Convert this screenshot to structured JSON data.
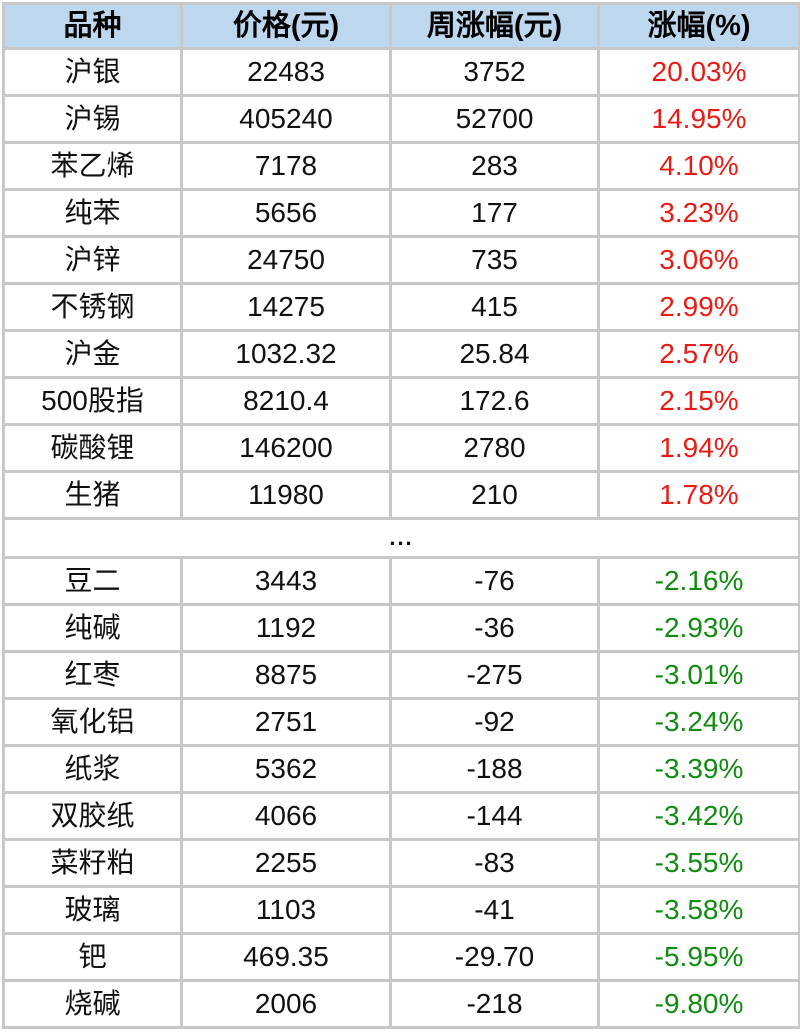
{
  "colors": {
    "header_bg": "#bdd7ee",
    "border": "#c8c8c8",
    "up": "#e81c14",
    "down": "#118c11",
    "text": "#111111"
  },
  "table": {
    "columns": [
      "品种",
      "价格(元)",
      "周涨幅(元)",
      "涨幅(%)"
    ],
    "ellipsis": "...",
    "rows_up": [
      {
        "name": "沪银",
        "price": "22483",
        "week_change": "3752",
        "pct": "20.03%"
      },
      {
        "name": "沪锡",
        "price": "405240",
        "week_change": "52700",
        "pct": "14.95%"
      },
      {
        "name": "苯乙烯",
        "price": "7178",
        "week_change": "283",
        "pct": "4.10%"
      },
      {
        "name": "纯苯",
        "price": "5656",
        "week_change": "177",
        "pct": "3.23%"
      },
      {
        "name": "沪锌",
        "price": "24750",
        "week_change": "735",
        "pct": "3.06%"
      },
      {
        "name": "不锈钢",
        "price": "14275",
        "week_change": "415",
        "pct": "2.99%"
      },
      {
        "name": "沪金",
        "price": "1032.32",
        "week_change": "25.84",
        "pct": "2.57%"
      },
      {
        "name": "500股指",
        "price": "8210.4",
        "week_change": "172.6",
        "pct": "2.15%"
      },
      {
        "name": "碳酸锂",
        "price": "146200",
        "week_change": "2780",
        "pct": "1.94%"
      },
      {
        "name": "生猪",
        "price": "11980",
        "week_change": "210",
        "pct": "1.78%"
      }
    ],
    "rows_down": [
      {
        "name": "豆二",
        "price": "3443",
        "week_change": "-76",
        "pct": "-2.16%"
      },
      {
        "name": "纯碱",
        "price": "1192",
        "week_change": "-36",
        "pct": "-2.93%"
      },
      {
        "name": "红枣",
        "price": "8875",
        "week_change": "-275",
        "pct": "-3.01%"
      },
      {
        "name": "氧化铝",
        "price": "2751",
        "week_change": "-92",
        "pct": "-3.24%"
      },
      {
        "name": "纸浆",
        "price": "5362",
        "week_change": "-188",
        "pct": "-3.39%"
      },
      {
        "name": "双胶纸",
        "price": "4066",
        "week_change": "-144",
        "pct": "-3.42%"
      },
      {
        "name": "菜籽粕",
        "price": "2255",
        "week_change": "-83",
        "pct": "-3.55%"
      },
      {
        "name": "玻璃",
        "price": "1103",
        "week_change": "-41",
        "pct": "-3.58%"
      },
      {
        "name": "钯",
        "price": "469.35",
        "week_change": "-29.70",
        "pct": "-5.95%"
      },
      {
        "name": "烧碱",
        "price": "2006",
        "week_change": "-218",
        "pct": "-9.80%"
      }
    ]
  },
  "chart_data": {
    "type": "table",
    "title": "",
    "columns": [
      "品种",
      "价格(元)",
      "周涨幅(元)",
      "涨幅(%)"
    ],
    "rows": [
      [
        "沪银",
        22483,
        3752,
        20.03
      ],
      [
        "沪锡",
        405240,
        52700,
        14.95
      ],
      [
        "苯乙烯",
        7178,
        283,
        4.1
      ],
      [
        "纯苯",
        5656,
        177,
        3.23
      ],
      [
        "沪锌",
        24750,
        735,
        3.06
      ],
      [
        "不锈钢",
        14275,
        415,
        2.99
      ],
      [
        "沪金",
        1032.32,
        25.84,
        2.57
      ],
      [
        "500股指",
        8210.4,
        172.6,
        2.15
      ],
      [
        "碳酸锂",
        146200,
        2780,
        1.94
      ],
      [
        "生猪",
        11980,
        210,
        1.78
      ],
      [
        "...",
        null,
        null,
        null
      ],
      [
        "豆二",
        3443,
        -76,
        -2.16
      ],
      [
        "纯碱",
        1192,
        -36,
        -2.93
      ],
      [
        "红枣",
        8875,
        -275,
        -3.01
      ],
      [
        "氧化铝",
        2751,
        -92,
        -3.24
      ],
      [
        "纸浆",
        5362,
        -188,
        -3.39
      ],
      [
        "双胶纸",
        4066,
        -144,
        -3.42
      ],
      [
        "菜籽粕",
        2255,
        -83,
        -3.55
      ],
      [
        "玻璃",
        1103,
        -41,
        -3.58
      ],
      [
        "钯",
        469.35,
        -29.7,
        -5.95
      ],
      [
        "烧碱",
        2006,
        -218,
        -9.8
      ]
    ],
    "notes": "positive 涨幅 rendered red, negative rendered green; middle row is an ellipsis separator"
  }
}
